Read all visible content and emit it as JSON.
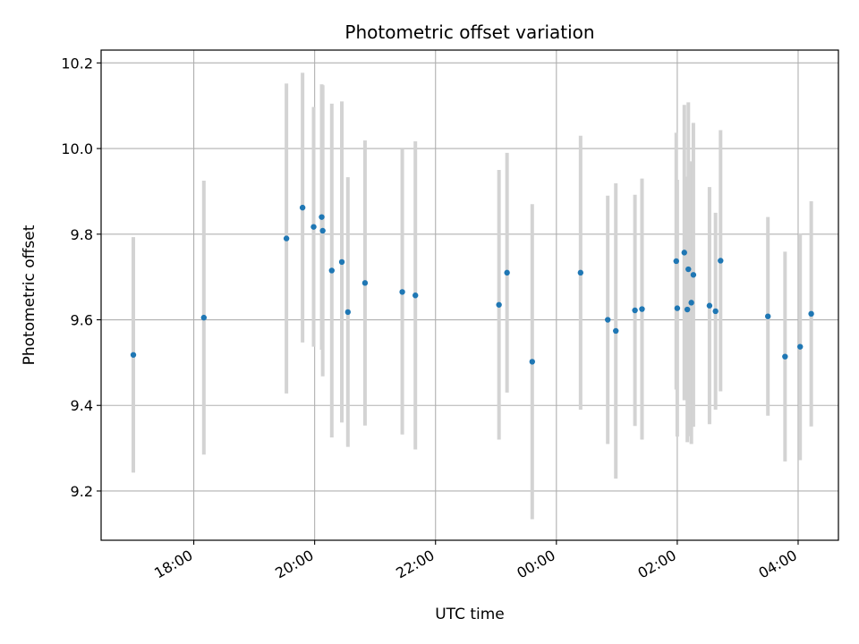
{
  "chart_data": {
    "type": "scatter",
    "title": "Photometric offset variation",
    "xlabel": "UTC time",
    "ylabel": "Photometric offset",
    "x_axis": "time",
    "xlim": [
      "16:28",
      "04:40"
    ],
    "ylim": [
      9.085,
      10.23
    ],
    "x_ticks": [
      "18:00",
      "20:00",
      "22:00",
      "00:00",
      "02:00",
      "04:00"
    ],
    "y_ticks": [
      "9.2",
      "9.4",
      "9.6",
      "9.8",
      "10.0",
      "10.2"
    ],
    "grid": true,
    "colors": {
      "points": "#1f77b4",
      "errorbars": "#d3d3d3",
      "grid": "#b0b0b0"
    },
    "points": [
      {
        "x": "17:00",
        "y": 9.518,
        "err": 0.275
      },
      {
        "x": "18:10",
        "y": 9.605,
        "err": 0.32
      },
      {
        "x": "19:32",
        "y": 9.79,
        "err": 0.362
      },
      {
        "x": "19:48",
        "y": 9.862,
        "err": 0.315
      },
      {
        "x": "19:59",
        "y": 9.817,
        "err": 0.28
      },
      {
        "x": "20:07",
        "y": 9.84,
        "err": 0.31
      },
      {
        "x": "20:08",
        "y": 9.808,
        "err": 0.34
      },
      {
        "x": "20:17",
        "y": 9.715,
        "err": 0.39
      },
      {
        "x": "20:27",
        "y": 9.735,
        "err": 0.375
      },
      {
        "x": "20:33",
        "y": 9.618,
        "err": 0.315
      },
      {
        "x": "20:50",
        "y": 9.686,
        "err": 0.333
      },
      {
        "x": "21:27",
        "y": 9.665,
        "err": 0.333
      },
      {
        "x": "21:40",
        "y": 9.657,
        "err": 0.36
      },
      {
        "x": "23:03",
        "y": 9.635,
        "err": 0.315
      },
      {
        "x": "23:11",
        "y": 9.71,
        "err": 0.28
      },
      {
        "x": "23:36",
        "y": 9.502,
        "err": 0.368
      },
      {
        "x": "00:24",
        "y": 9.71,
        "err": 0.32
      },
      {
        "x": "00:51",
        "y": 9.6,
        "err": 0.29
      },
      {
        "x": "00:59",
        "y": 9.574,
        "err": 0.345
      },
      {
        "x": "01:18",
        "y": 9.622,
        "err": 0.27
      },
      {
        "x": "01:25",
        "y": 9.625,
        "err": 0.305
      },
      {
        "x": "01:59",
        "y": 9.737,
        "err": 0.3
      },
      {
        "x": "02:00",
        "y": 9.627,
        "err": 0.3
      },
      {
        "x": "02:07",
        "y": 9.757,
        "err": 0.345
      },
      {
        "x": "02:10",
        "y": 9.624,
        "err": 0.31
      },
      {
        "x": "02:11",
        "y": 9.718,
        "err": 0.39
      },
      {
        "x": "02:14",
        "y": 9.64,
        "err": 0.33
      },
      {
        "x": "02:16",
        "y": 9.705,
        "err": 0.355
      },
      {
        "x": "02:32",
        "y": 9.633,
        "err": 0.277
      },
      {
        "x": "02:38",
        "y": 9.62,
        "err": 0.23
      },
      {
        "x": "02:43",
        "y": 9.738,
        "err": 0.305
      },
      {
        "x": "03:30",
        "y": 9.608,
        "err": 0.232
      },
      {
        "x": "03:47",
        "y": 9.514,
        "err": 0.245
      },
      {
        "x": "04:02",
        "y": 9.537,
        "err": 0.265
      },
      {
        "x": "04:13",
        "y": 9.614,
        "err": 0.263
      }
    ]
  }
}
